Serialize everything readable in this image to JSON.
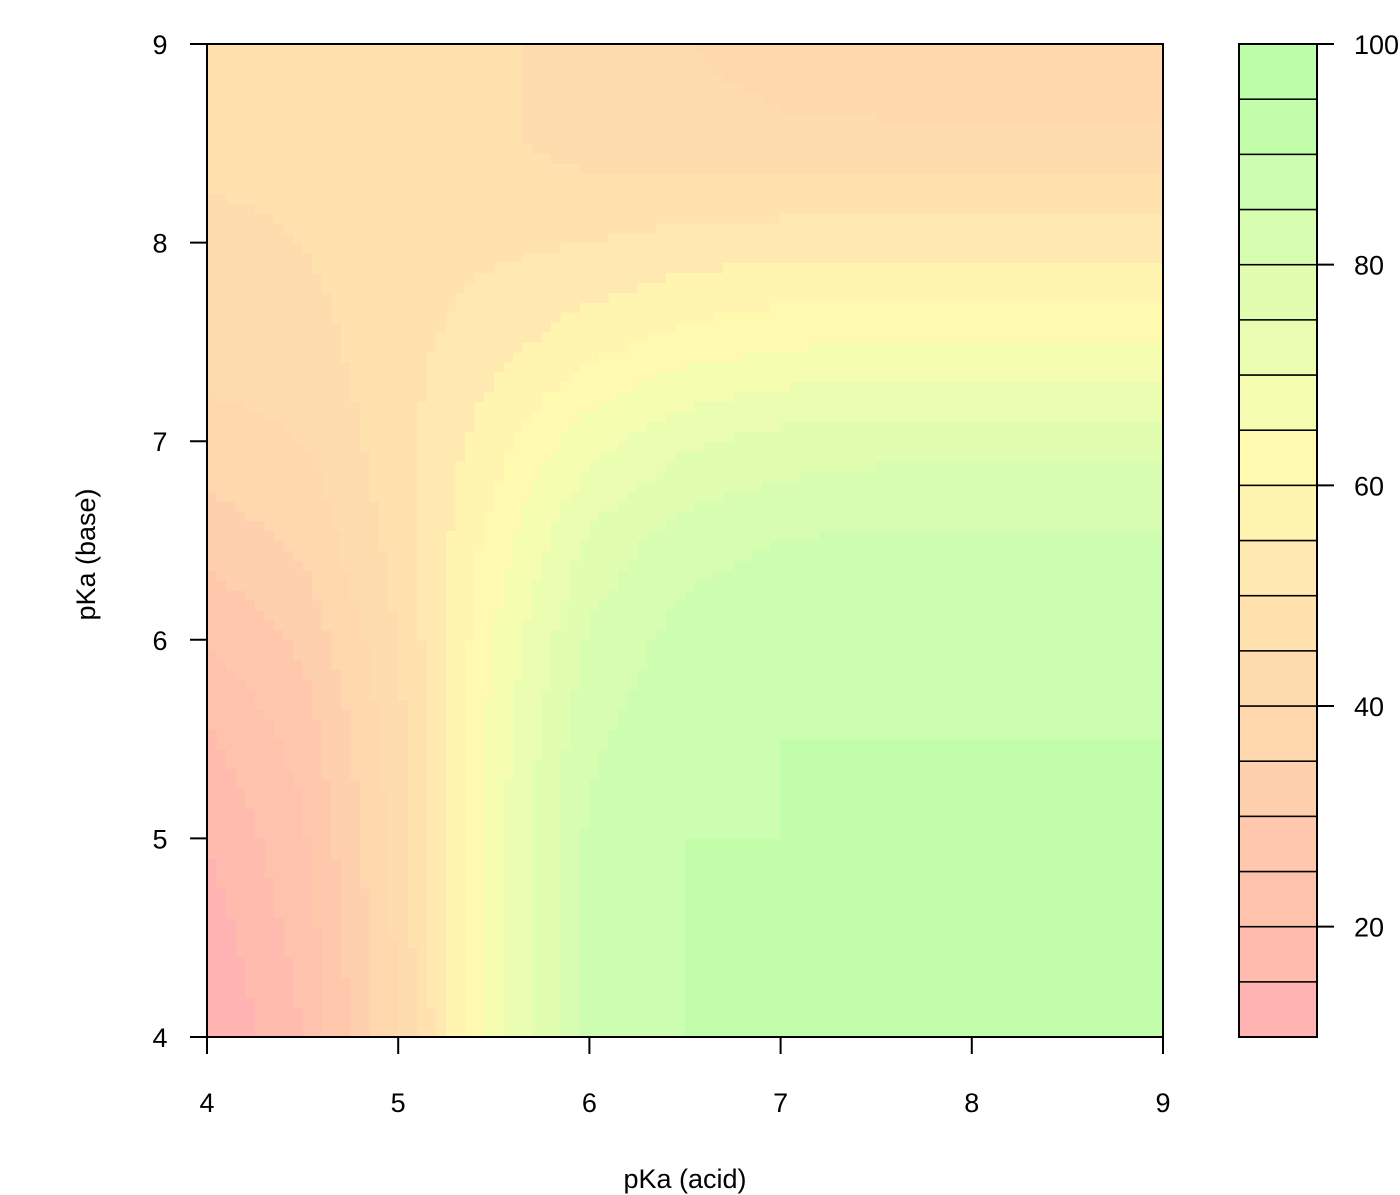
{
  "chart_data": {
    "type": "heatmap",
    "subtype": "filled-contour",
    "title": "",
    "xlabel": "pKa (acid)",
    "ylabel": "pKa (base)",
    "xlim": [
      4,
      9
    ],
    "ylim": [
      4,
      9
    ],
    "x_ticks": [
      "4",
      "5",
      "6",
      "7",
      "8",
      "9"
    ],
    "y_ticks": [
      "4",
      "5",
      "6",
      "7",
      "8",
      "9"
    ],
    "x": [
      4,
      4.5,
      5,
      5.5,
      6,
      6.5,
      7,
      7.5,
      8,
      8.5,
      9
    ],
    "y": [
      4,
      4.5,
      5,
      5.5,
      6,
      6.5,
      7,
      7.5,
      8,
      8.5,
      9
    ],
    "z": [
      [
        9,
        20,
        40,
        68,
        86,
        90,
        90,
        90,
        90,
        90,
        90
      ],
      [
        12,
        22,
        41,
        68,
        86,
        90,
        90,
        90,
        90,
        90,
        90
      ],
      [
        15,
        24,
        42,
        68,
        86,
        90,
        90,
        90,
        90,
        90,
        90
      ],
      [
        19,
        27,
        43,
        67,
        84,
        89,
        90,
        90,
        90,
        90,
        90
      ],
      [
        25,
        31,
        45,
        65,
        81,
        87,
        89,
        89,
        89,
        89,
        89
      ],
      [
        32,
        36,
        47,
        62,
        76,
        83,
        85,
        86,
        86,
        86,
        86
      ],
      [
        38,
        40,
        48,
        58,
        68,
        74,
        77,
        78,
        78,
        78,
        78
      ],
      [
        42,
        43,
        48,
        53,
        58,
        62,
        64,
        65,
        65,
        65,
        65
      ],
      [
        44,
        45,
        48,
        49,
        50,
        52,
        53,
        53,
        53,
        53,
        53
      ],
      [
        46,
        46,
        47,
        46,
        43,
        42,
        41,
        41,
        41,
        41,
        41
      ],
      [
        47,
        47,
        47,
        46,
        43,
        40,
        38,
        37,
        36,
        36,
        36
      ]
    ],
    "levels": [
      10,
      15,
      20,
      25,
      30,
      35,
      40,
      45,
      50,
      55,
      60,
      65,
      70,
      75,
      80,
      85,
      90,
      95,
      100
    ],
    "level_colors": [
      "#FFB3B3",
      "#FFBBAD",
      "#FFC2AD",
      "#FFC8AD",
      "#FFD0AD",
      "#FFD8AD",
      "#FFDCAD",
      "#FFE2AD",
      "#FFE9B0",
      "#FFF4B0",
      "#FFFAB0",
      "#F5FDB0",
      "#EBFDB0",
      "#E0FDB0",
      "#D6FDB0",
      "#CCFDB0",
      "#C2FEAA",
      "#BDFEA8"
    ],
    "colorbar": {
      "ticks": [
        "20",
        "40",
        "60",
        "80",
        "100"
      ],
      "tick_values": [
        20,
        40,
        60,
        80,
        100
      ],
      "range": [
        10,
        100
      ]
    },
    "grid": false,
    "legend": "colorbar-right"
  }
}
